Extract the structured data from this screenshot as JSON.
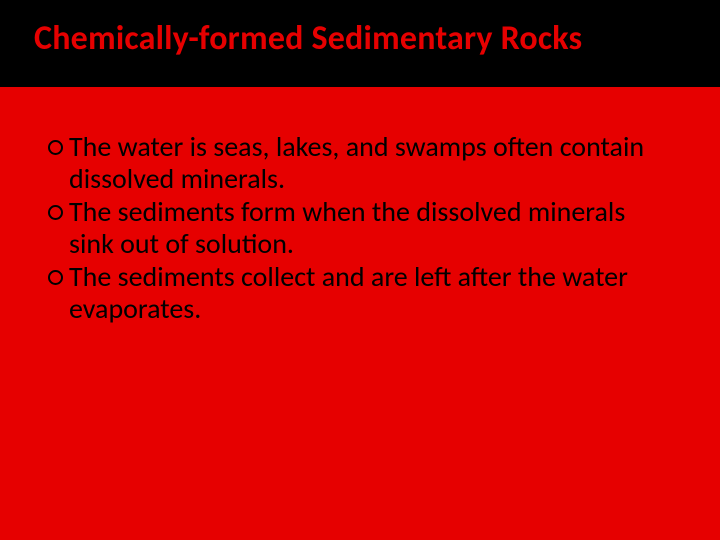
{
  "slide": {
    "title": "Chemically-formed Sedimentary Rocks",
    "title_color": "#e60000",
    "title_fontsize": 34,
    "title_bg": "#000000",
    "body_bg": "#e60000",
    "bullet_color": "#000000",
    "bullet_fontsize": 28,
    "bullets": [
      "The water is seas, lakes, and swamps often contain dissolved minerals.",
      "The sediments form when the dissolved minerals sink out of solution.",
      "The sediments collect and are left after the water evaporates."
    ]
  }
}
